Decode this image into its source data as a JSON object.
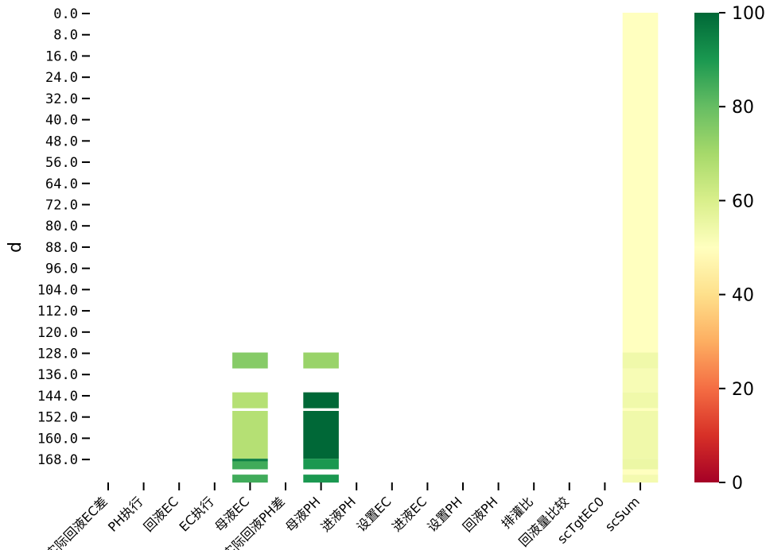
{
  "chart_data": {
    "type": "heatmap",
    "title": "",
    "ylabel": "d",
    "xlabel": "",
    "columns": [
      "实际回液EC差",
      "PH执行",
      "回液EC",
      "EC执行",
      "母液EC",
      "实际回液PH差",
      "母液PH",
      "进液PH",
      "设置EC",
      "进液EC",
      "设置PH",
      "回液PH",
      "排灌比",
      "回液量比较",
      "scTgtEC0",
      "scSum"
    ],
    "y_ticks": [
      "0.0",
      "8.0",
      "16.0",
      "24.0",
      "32.0",
      "40.0",
      "48.0",
      "56.0",
      "64.0",
      "72.0",
      "80.0",
      "88.0",
      "96.0",
      "104.0",
      "112.0",
      "120.0",
      "128.0",
      "136.0",
      "144.0",
      "152.0",
      "160.0",
      "168.0"
    ],
    "row_count": 176,
    "colorbar": {
      "min": 0,
      "max": 100,
      "ticks": [
        "0",
        "20",
        "40",
        "60",
        "80",
        "100"
      ],
      "colormap": [
        "#a50026",
        "#d73027",
        "#f46d43",
        "#fdae61",
        "#fee08b",
        "#ffffbf",
        "#d9ef8b",
        "#a6d96a",
        "#66bd63",
        "#1a9850",
        "#006837"
      ]
    },
    "cells": [
      {
        "column": "母液EC",
        "row_start": 128,
        "row_end": 134,
        "value": 75
      },
      {
        "column": "母液EC",
        "row_start": 143,
        "row_end": 149,
        "value": 67
      },
      {
        "column": "母液EC",
        "row_start": 150,
        "row_end": 168,
        "value": 67
      },
      {
        "column": "母液EC",
        "row_start": 168,
        "row_end": 169,
        "value": 95
      },
      {
        "column": "母液EC",
        "row_start": 169,
        "row_end": 172,
        "value": 85
      },
      {
        "column": "母液EC",
        "row_start": 174,
        "row_end": 177,
        "value": 85
      },
      {
        "column": "母液PH",
        "row_start": 128,
        "row_end": 134,
        "value": 72
      },
      {
        "column": "母液PH",
        "row_start": 143,
        "row_end": 149,
        "value": 100
      },
      {
        "column": "母液PH",
        "row_start": 150,
        "row_end": 168,
        "value": 100
      },
      {
        "column": "母液PH",
        "row_start": 168,
        "row_end": 172,
        "value": 90
      },
      {
        "column": "母液PH",
        "row_start": 174,
        "row_end": 177,
        "value": 90
      },
      {
        "column": "scSum",
        "row_start": 0,
        "row_end": 128,
        "value": 50
      },
      {
        "column": "scSum",
        "row_start": 128,
        "row_end": 134,
        "value": 54
      },
      {
        "column": "scSum",
        "row_start": 134,
        "row_end": 143,
        "value": 52
      },
      {
        "column": "scSum",
        "row_start": 143,
        "row_end": 149,
        "value": 54
      },
      {
        "column": "scSum",
        "row_start": 149,
        "row_end": 150,
        "value": 50
      },
      {
        "column": "scSum",
        "row_start": 150,
        "row_end": 168,
        "value": 54
      },
      {
        "column": "scSum",
        "row_start": 168,
        "row_end": 172,
        "value": 55
      },
      {
        "column": "scSum",
        "row_start": 172,
        "row_end": 174,
        "value": 50
      },
      {
        "column": "scSum",
        "row_start": 174,
        "row_end": 177,
        "value": 53
      }
    ]
  }
}
